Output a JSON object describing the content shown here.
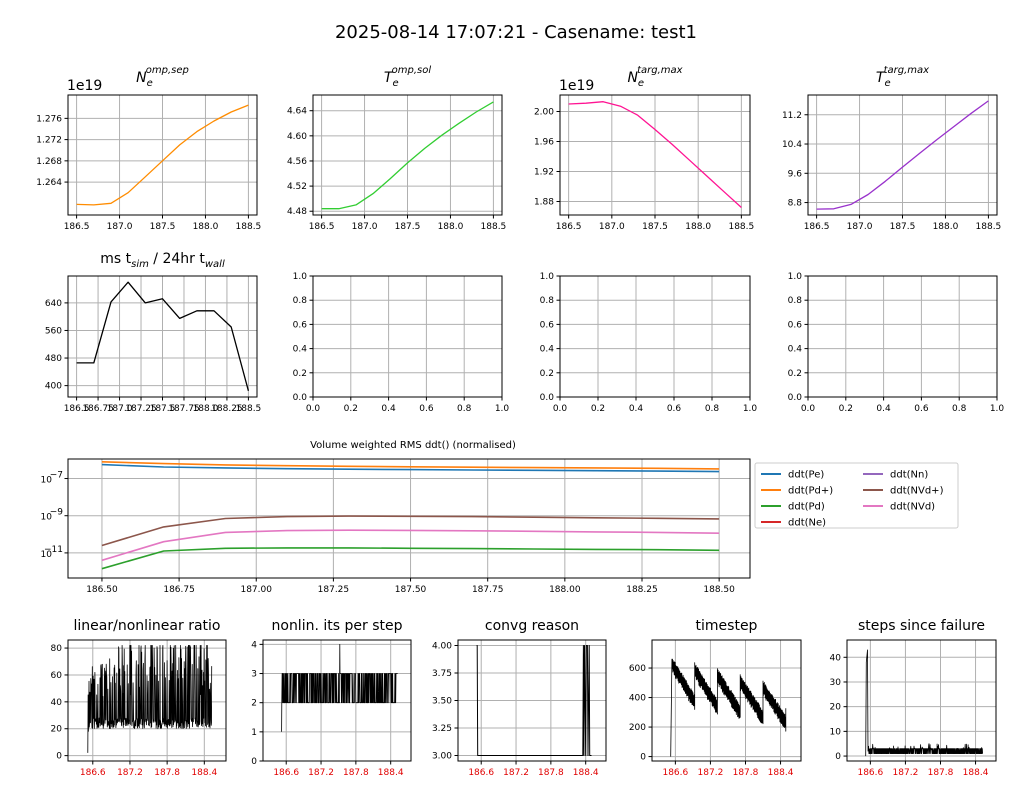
{
  "figure": {
    "suptitle": "2025-08-14 17:07:21 - Casename: test1"
  },
  "chart_data": [
    {
      "id": "ne_omp",
      "type": "line",
      "title": "N_e^{omp,sep}",
      "offset_label": "1e19",
      "color": "#ff8c00",
      "x": [
        186.5,
        186.7,
        186.9,
        187.1,
        187.3,
        187.5,
        187.7,
        187.9,
        188.1,
        188.3,
        188.5
      ],
      "y": [
        1.2598,
        1.2597,
        1.26,
        1.262,
        1.265,
        1.268,
        1.271,
        1.2735,
        1.2755,
        1.2772,
        1.2785
      ],
      "xlim": [
        186.4,
        188.6
      ],
      "ylim": [
        1.2578,
        1.2804
      ],
      "xticks": [
        186.5,
        187.0,
        187.5,
        188.0,
        188.5
      ],
      "xticklabels": [
        "186.5",
        "187.0",
        "187.5",
        "188.0",
        "188.5"
      ],
      "yticks": [
        1.264,
        1.268,
        1.272,
        1.276
      ],
      "yticklabels": [
        "1.264",
        "1.268",
        "1.272",
        "1.276"
      ],
      "grid": true
    },
    {
      "id": "te_omp",
      "type": "line",
      "title": "T_e^{omp,sol}",
      "color": "#32cd32",
      "x": [
        186.5,
        186.7,
        186.9,
        187.1,
        187.3,
        187.5,
        187.7,
        187.9,
        188.1,
        188.3,
        188.5
      ],
      "y": [
        4.484,
        4.484,
        4.49,
        4.508,
        4.532,
        4.557,
        4.58,
        4.601,
        4.62,
        4.638,
        4.654
      ],
      "xlim": [
        186.4,
        188.6
      ],
      "ylim": [
        4.474,
        4.665
      ],
      "xticks": [
        186.5,
        187.0,
        187.5,
        188.0,
        188.5
      ],
      "xticklabels": [
        "186.5",
        "187.0",
        "187.5",
        "188.0",
        "188.5"
      ],
      "yticks": [
        4.48,
        4.52,
        4.56,
        4.6,
        4.64
      ],
      "yticklabels": [
        "4.48",
        "4.52",
        "4.56",
        "4.60",
        "4.64"
      ],
      "grid": true
    },
    {
      "id": "ne_targ",
      "type": "line",
      "title": "N_e^{targ,max}",
      "offset_label": "1e19",
      "color": "#ff1493",
      "x": [
        186.5,
        186.7,
        186.9,
        187.1,
        187.3,
        187.5,
        187.7,
        187.9,
        188.1,
        188.3,
        188.5
      ],
      "y": [
        2.01,
        2.011,
        2.013,
        2.007,
        1.995,
        1.976,
        1.956,
        1.935,
        1.914,
        1.893,
        1.872
      ],
      "xlim": [
        186.4,
        188.6
      ],
      "ylim": [
        1.862,
        2.022
      ],
      "xticks": [
        186.5,
        187.0,
        187.5,
        188.0,
        188.5
      ],
      "xticklabels": [
        "186.5",
        "187.0",
        "187.5",
        "188.0",
        "188.5"
      ],
      "yticks": [
        1.88,
        1.92,
        1.96,
        2.0
      ],
      "yticklabels": [
        "1.88",
        "1.92",
        "1.96",
        "2.00"
      ],
      "grid": true
    },
    {
      "id": "te_targ",
      "type": "line",
      "title": "T_e^{targ,max}",
      "color": "#9932cc",
      "x": [
        186.5,
        186.7,
        186.9,
        187.1,
        187.3,
        187.5,
        187.7,
        187.9,
        188.1,
        188.3,
        188.5
      ],
      "y": [
        8.62,
        8.63,
        8.75,
        9.02,
        9.38,
        9.77,
        10.15,
        10.52,
        10.88,
        11.24,
        11.58
      ],
      "xlim": [
        186.4,
        188.6
      ],
      "ylim": [
        8.46,
        11.74
      ],
      "xticks": [
        186.5,
        187.0,
        187.5,
        188.0,
        188.5
      ],
      "xticklabels": [
        "186.5",
        "187.0",
        "187.5",
        "188.0",
        "188.5"
      ],
      "yticks": [
        8.8,
        9.6,
        10.4,
        11.2
      ],
      "yticklabels": [
        "8.8",
        "9.6",
        "10.4",
        "11.2"
      ],
      "grid": true
    },
    {
      "id": "ms_per_day",
      "type": "line",
      "title": "ms t_sim / 24hr t_wall",
      "color": "#000000",
      "x": [
        186.5,
        186.7,
        186.9,
        187.1,
        187.3,
        187.5,
        187.7,
        187.9,
        188.1,
        188.3,
        188.5
      ],
      "y": [
        466,
        466,
        643,
        700,
        640,
        652,
        595,
        617,
        617,
        570,
        385
      ],
      "xlim": [
        186.4,
        188.6
      ],
      "ylim": [
        367,
        718
      ],
      "xticks": [
        186.5,
        186.75,
        187.0,
        187.25,
        187.5,
        187.75,
        188.0,
        188.25,
        188.5
      ],
      "xticklabels": [
        "186.5",
        "186.75",
        "187.0",
        "187.25",
        "187.5",
        "187.75",
        "188.0",
        "188.25",
        "188.5"
      ],
      "yticks": [
        400,
        480,
        560,
        640
      ],
      "yticklabels": [
        "400",
        "480",
        "560",
        "640"
      ],
      "grid": true
    },
    {
      "id": "empty1",
      "type": "line",
      "title": "",
      "xlim": [
        0,
        1
      ],
      "ylim": [
        0,
        1
      ],
      "xticks": [
        0,
        0.2,
        0.4,
        0.6,
        0.8,
        1.0
      ],
      "xticklabels": [
        "0.0",
        "0.2",
        "0.4",
        "0.6",
        "0.8",
        "1.0"
      ],
      "yticks": [
        0,
        0.2,
        0.4,
        0.6,
        0.8,
        1.0
      ],
      "yticklabels": [
        "0.0",
        "0.2",
        "0.4",
        "0.6",
        "0.8",
        "1.0"
      ],
      "grid": true
    },
    {
      "id": "empty2",
      "type": "line",
      "title": "",
      "xlim": [
        0,
        1
      ],
      "ylim": [
        0,
        1
      ],
      "xticks": [
        0,
        0.2,
        0.4,
        0.6,
        0.8,
        1.0
      ],
      "xticklabels": [
        "0.0",
        "0.2",
        "0.4",
        "0.6",
        "0.8",
        "1.0"
      ],
      "yticks": [
        0,
        0.2,
        0.4,
        0.6,
        0.8,
        1.0
      ],
      "yticklabels": [
        "0.0",
        "0.2",
        "0.4",
        "0.6",
        "0.8",
        "1.0"
      ],
      "grid": true
    },
    {
      "id": "empty3",
      "type": "line",
      "title": "",
      "xlim": [
        0,
        1
      ],
      "ylim": [
        0,
        1
      ],
      "xticks": [
        0,
        0.2,
        0.4,
        0.6,
        0.8,
        1.0
      ],
      "xticklabels": [
        "0.0",
        "0.2",
        "0.4",
        "0.6",
        "0.8",
        "1.0"
      ],
      "yticks": [
        0,
        0.2,
        0.4,
        0.6,
        0.8,
        1.0
      ],
      "yticklabels": [
        "0.0",
        "0.2",
        "0.4",
        "0.6",
        "0.8",
        "1.0"
      ],
      "grid": true
    },
    {
      "id": "rms_ddt",
      "type": "line",
      "title": "Volume weighted RMS ddt() (normalised)",
      "yscale": "log",
      "x": [
        186.5,
        186.7,
        186.9,
        187.1,
        187.3,
        187.5,
        187.7,
        187.9,
        188.1,
        188.3,
        188.5
      ],
      "xlim": [
        186.39,
        188.6
      ],
      "ylog_lim": [
        -12.35,
        -5.95
      ],
      "xticks": [
        186.5,
        186.75,
        187.0,
        187.25,
        187.5,
        187.75,
        188.0,
        188.25,
        188.5
      ],
      "xticklabels": [
        "186.50",
        "186.75",
        "187.00",
        "187.25",
        "187.50",
        "187.75",
        "188.00",
        "188.25",
        "188.50"
      ],
      "yticks_exp": [
        -11,
        -9,
        -7
      ],
      "yticklabels": [
        "10",
        "10",
        "10"
      ],
      "ytick_exponents": [
        "−11",
        "−9",
        "−7"
      ],
      "grid": true,
      "legend": {
        "placement": "right-outside",
        "ncol": 2
      },
      "series": [
        {
          "name": "ddt(Pe)",
          "color": "#1f77b4",
          "log_values": [
            -6.25,
            -6.38,
            -6.43,
            -6.47,
            -6.5,
            -6.52,
            -6.54,
            -6.56,
            -6.58,
            -6.6,
            -6.63
          ]
        },
        {
          "name": "ddt(Pd+)",
          "color": "#ff7f0e",
          "log_values": [
            -6.1,
            -6.2,
            -6.27,
            -6.31,
            -6.34,
            -6.37,
            -6.39,
            -6.41,
            -6.43,
            -6.45,
            -6.48
          ]
        },
        {
          "name": "ddt(Pd)",
          "color": "#2ca02c",
          "log_values": [
            -11.85,
            -10.9,
            -10.75,
            -10.73,
            -10.73,
            -10.75,
            -10.77,
            -10.79,
            -10.81,
            -10.83,
            -10.86
          ]
        },
        {
          "name": "ddt(Ne)",
          "color": "#d62728",
          "log_values": []
        },
        {
          "name": "ddt(Nn)",
          "color": "#9467bd",
          "log_values": []
        },
        {
          "name": "ddt(NVd+)",
          "color": "#8c564b",
          "log_values": [
            -10.6,
            -9.6,
            -9.15,
            -9.05,
            -9.02,
            -9.03,
            -9.05,
            -9.08,
            -9.11,
            -9.14,
            -9.17
          ]
        },
        {
          "name": "ddt(NVd)",
          "color": "#e377c2",
          "log_values": [
            -11.4,
            -10.4,
            -9.9,
            -9.8,
            -9.78,
            -9.79,
            -9.81,
            -9.84,
            -9.87,
            -9.9,
            -9.94
          ]
        }
      ]
    },
    {
      "id": "lin_nonlin",
      "type": "line",
      "title": "linear/nonlinear ratio",
      "color": "#000000",
      "xlim": [
        186.2,
        188.75
      ],
      "ylim": [
        -4,
        86
      ],
      "xticks": [
        186.6,
        187.2,
        187.8,
        188.4
      ],
      "xticklabels": [
        "186.6",
        "187.2",
        "187.8",
        "188.4"
      ],
      "yticks": [
        0,
        20,
        40,
        60,
        80
      ],
      "yticklabels": [
        "0",
        "20",
        "40",
        "60",
        "80"
      ],
      "grid": true
    },
    {
      "id": "nonlin_its",
      "type": "line",
      "title": "nonlin. its per step",
      "color": "#000000",
      "xlim": [
        186.2,
        188.75
      ],
      "ylim": [
        0,
        4.15
      ],
      "xticks": [
        186.6,
        187.2,
        187.8,
        188.4
      ],
      "xticklabels": [
        "186.6",
        "187.2",
        "187.8",
        "188.4"
      ],
      "yticks": [
        0,
        1,
        2,
        3,
        4
      ],
      "yticklabels": [
        "0",
        "1",
        "2",
        "3",
        "4"
      ],
      "grid": true
    },
    {
      "id": "convg_reason",
      "type": "line",
      "title": "convg reason",
      "color": "#000000",
      "xlim": [
        186.2,
        188.75
      ],
      "ylim": [
        2.95,
        4.05
      ],
      "xticks": [
        186.6,
        187.2,
        187.8,
        188.4
      ],
      "xticklabels": [
        "186.6",
        "187.2",
        "187.8",
        "188.4"
      ],
      "yticks": [
        3.0,
        3.25,
        3.5,
        3.75,
        4.0
      ],
      "yticklabels": [
        "3.00",
        "3.25",
        "3.50",
        "3.75",
        "4.00"
      ],
      "grid": true
    },
    {
      "id": "timestep",
      "type": "line",
      "title": "timestep",
      "color": "#000000",
      "xlim": [
        186.2,
        188.75
      ],
      "ylim": [
        -30,
        790
      ],
      "xticks": [
        186.6,
        187.2,
        187.8,
        188.4
      ],
      "xticklabels": [
        "186.6",
        "187.2",
        "187.8",
        "188.4"
      ],
      "yticks": [
        0,
        200,
        400,
        600
      ],
      "yticklabels": [
        "0",
        "200",
        "400",
        "600"
      ],
      "grid": true
    },
    {
      "id": "steps_since_fail",
      "type": "line",
      "title": "steps since failure",
      "color": "#000000",
      "xlim": [
        186.2,
        188.75
      ],
      "ylim": [
        -2,
        47
      ],
      "xticks": [
        186.6,
        187.2,
        187.8,
        188.4
      ],
      "xticklabels": [
        "186.6",
        "187.2",
        "187.8",
        "188.4"
      ],
      "yticks": [
        0,
        10,
        20,
        30,
        40
      ],
      "yticklabels": [
        "0",
        "10",
        "20",
        "30",
        "40"
      ],
      "grid": true
    }
  ]
}
